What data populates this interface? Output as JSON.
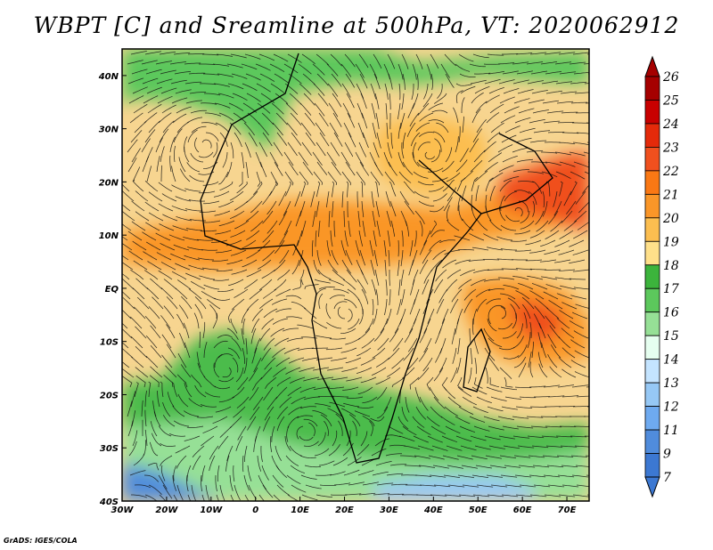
{
  "title": "WBPT [C] and Sreamline at 500hPa, VT: 2020062912",
  "credit": "GrADS: IGES/COLA",
  "map": {
    "lon_range": [
      -30,
      75
    ],
    "lat_range": [
      -40,
      45
    ],
    "lon_ticks": [
      {
        "value": -30,
        "label": "30W"
      },
      {
        "value": -20,
        "label": "20W"
      },
      {
        "value": -10,
        "label": "10W"
      },
      {
        "value": 0,
        "label": "0"
      },
      {
        "value": 10,
        "label": "10E"
      },
      {
        "value": 20,
        "label": "20E"
      },
      {
        "value": 30,
        "label": "30E"
      },
      {
        "value": 40,
        "label": "40E"
      },
      {
        "value": 50,
        "label": "50E"
      },
      {
        "value": 60,
        "label": "60E"
      },
      {
        "value": 70,
        "label": "70E"
      }
    ],
    "lat_ticks": [
      {
        "value": 40,
        "label": "40N"
      },
      {
        "value": 30,
        "label": "30N"
      },
      {
        "value": 20,
        "label": "20N"
      },
      {
        "value": 10,
        "label": "10N"
      },
      {
        "value": 0,
        "label": "EQ"
      },
      {
        "value": -10,
        "label": "10S"
      },
      {
        "value": -20,
        "label": "20S"
      },
      {
        "value": -30,
        "label": "30S"
      },
      {
        "value": -40,
        "label": "40S"
      }
    ]
  },
  "colorbar": {
    "labels": [
      "26",
      "25",
      "24",
      "23",
      "22",
      "21",
      "20",
      "19",
      "18",
      "17",
      "16",
      "15",
      "14",
      "13",
      "12",
      "11",
      "9",
      "7"
    ],
    "colors": [
      "#a50000",
      "#c80000",
      "#e42a0a",
      "#f0501e",
      "#fa7814",
      "#fa9628",
      "#fcbe50",
      "#ffe08a",
      "#3cb43c",
      "#5cc85c",
      "#96e096",
      "#e6fff0",
      "#c4e4ff",
      "#96c8f5",
      "#6eaaf0",
      "#508cdc",
      "#3c78d2"
    ],
    "top_color": "#a50000",
    "bottom_color": "#3c78d2"
  }
}
